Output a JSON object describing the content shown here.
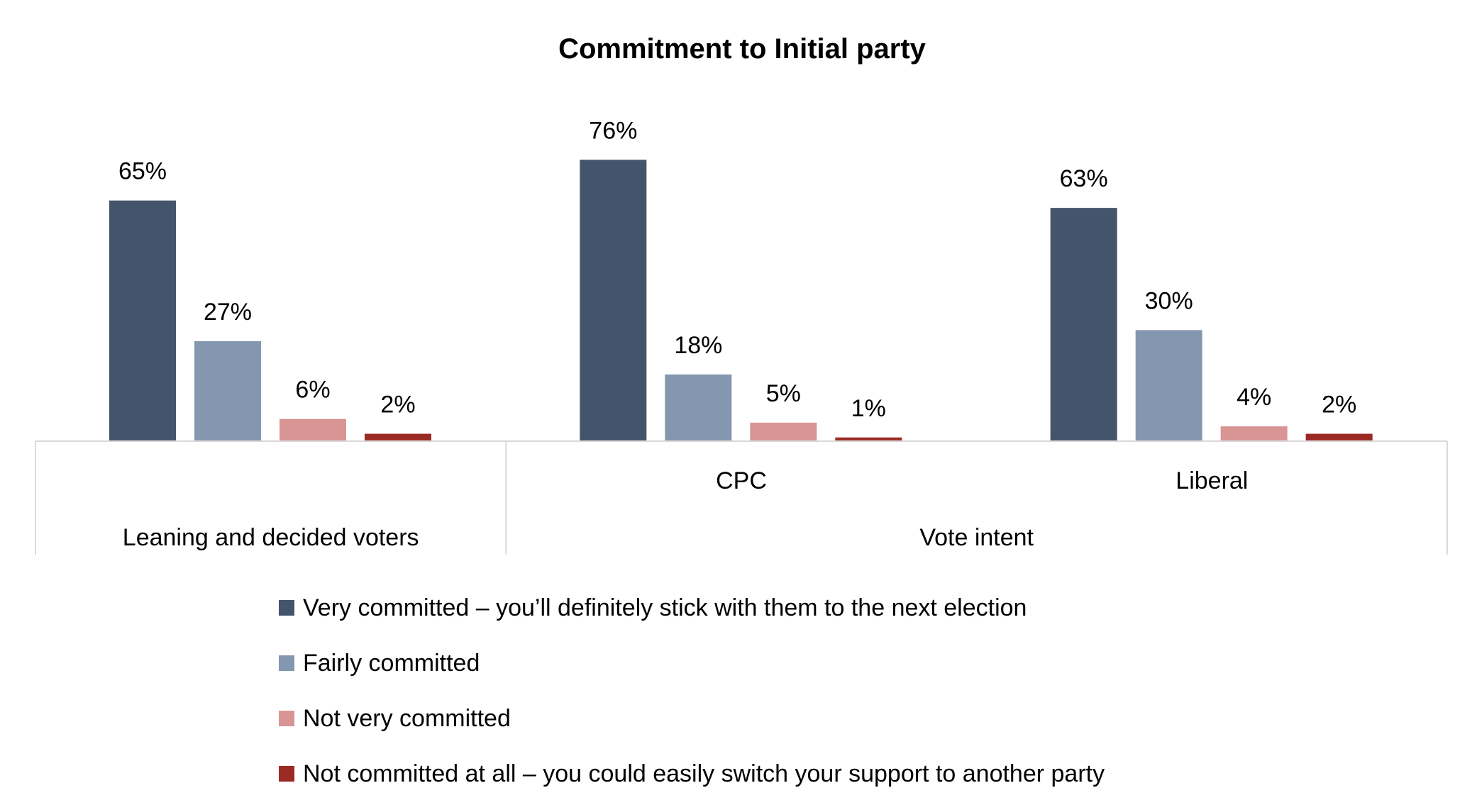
{
  "chart_data": {
    "type": "bar",
    "title": "Commitment to Initial party",
    "categories": [
      "",
      "CPC",
      "Liberal"
    ],
    "groups": [
      {
        "label": "Leaning and decided voters",
        "categories": [
          ""
        ]
      },
      {
        "label": "Vote intent",
        "categories": [
          "CPC",
          "Liberal"
        ]
      }
    ],
    "series": [
      {
        "name": "Very committed – you’ll definitely stick with them to the next election",
        "color": "#44546A",
        "values": [
          65,
          76,
          63
        ],
        "labels": [
          "65%",
          "76%",
          "63%"
        ]
      },
      {
        "name": "Fairly committed",
        "color": "#8497B0",
        "values": [
          27,
          18,
          30
        ],
        "labels": [
          "27%",
          "18%",
          "30%"
        ]
      },
      {
        "name": "Not very committed",
        "color": "#D99594",
        "values": [
          6,
          5,
          4
        ],
        "labels": [
          "6%",
          "5%",
          "4%"
        ]
      },
      {
        "name": "Not committed at all – you could easily switch your support to another party",
        "color": "#9B2A25",
        "values": [
          2,
          1,
          2
        ],
        "labels": [
          "2%",
          "1%",
          "2%"
        ]
      }
    ],
    "ylim": [
      0,
      100
    ],
    "grid": false,
    "legend_position": "bottom",
    "axis_color": "#D9D9D9"
  }
}
